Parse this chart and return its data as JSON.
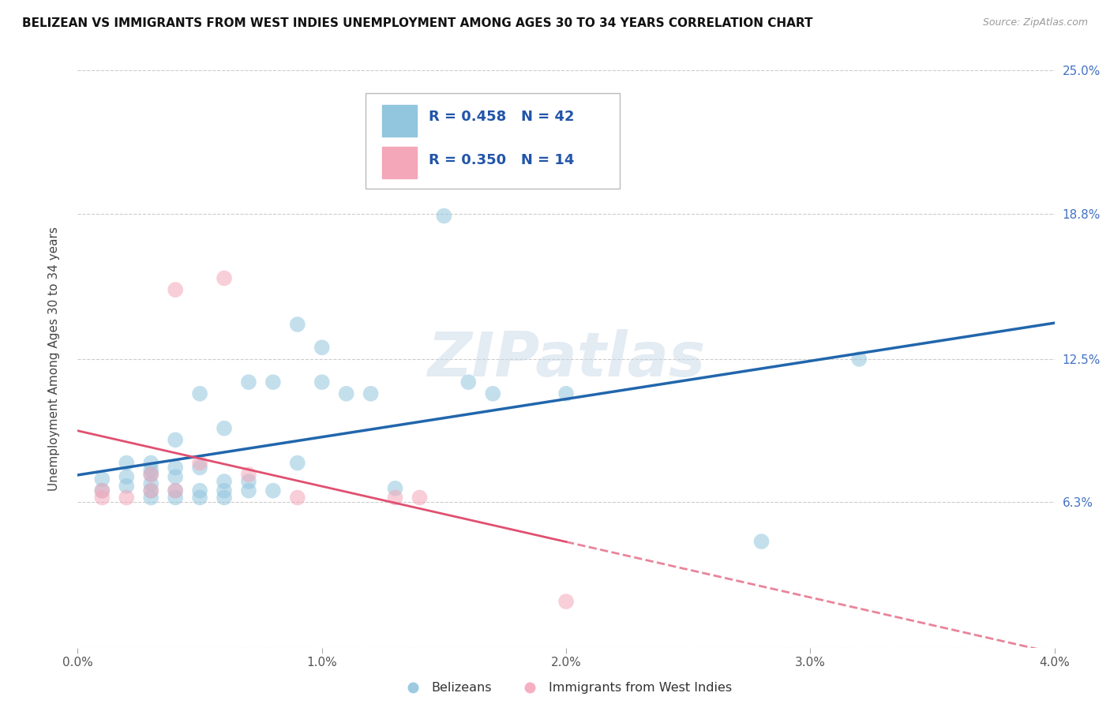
{
  "title": "BELIZEAN VS IMMIGRANTS FROM WEST INDIES UNEMPLOYMENT AMONG AGES 30 TO 34 YEARS CORRELATION CHART",
  "source": "Source: ZipAtlas.com",
  "ylabel": "Unemployment Among Ages 30 to 34 years",
  "xlim": [
    0.0,
    0.04
  ],
  "ylim": [
    0.0,
    0.25
  ],
  "yticks": [
    0.0,
    0.063,
    0.125,
    0.188,
    0.25
  ],
  "ytick_labels": [
    "",
    "6.3%",
    "12.5%",
    "18.8%",
    "25.0%"
  ],
  "xticks": [
    0.0,
    0.01,
    0.02,
    0.03,
    0.04
  ],
  "xtick_labels": [
    "0.0%",
    "1.0%",
    "2.0%",
    "3.0%",
    "4.0%"
  ],
  "blue_color": "#92c5de",
  "pink_color": "#f4a7b9",
  "blue_line_color": "#2166ac",
  "pink_line_color": "#e05070",
  "blue_R": 0.458,
  "blue_N": 42,
  "pink_R": 0.35,
  "pink_N": 14,
  "blue_scatter_x": [
    0.001,
    0.001,
    0.002,
    0.002,
    0.002,
    0.003,
    0.003,
    0.003,
    0.003,
    0.003,
    0.003,
    0.004,
    0.004,
    0.004,
    0.004,
    0.004,
    0.005,
    0.005,
    0.005,
    0.005,
    0.006,
    0.006,
    0.006,
    0.006,
    0.007,
    0.007,
    0.007,
    0.008,
    0.008,
    0.009,
    0.009,
    0.01,
    0.01,
    0.011,
    0.012,
    0.013,
    0.015,
    0.016,
    0.017,
    0.02,
    0.028,
    0.032
  ],
  "blue_scatter_y": [
    0.068,
    0.073,
    0.07,
    0.074,
    0.08,
    0.065,
    0.068,
    0.071,
    0.075,
    0.077,
    0.08,
    0.065,
    0.068,
    0.074,
    0.078,
    0.09,
    0.065,
    0.068,
    0.078,
    0.11,
    0.065,
    0.068,
    0.072,
    0.095,
    0.068,
    0.072,
    0.115,
    0.068,
    0.115,
    0.08,
    0.14,
    0.115,
    0.13,
    0.11,
    0.11,
    0.069,
    0.187,
    0.115,
    0.11,
    0.11,
    0.046,
    0.125
  ],
  "pink_scatter_x": [
    0.001,
    0.001,
    0.002,
    0.003,
    0.003,
    0.004,
    0.004,
    0.005,
    0.006,
    0.007,
    0.009,
    0.013,
    0.014,
    0.02
  ],
  "pink_scatter_y": [
    0.065,
    0.068,
    0.065,
    0.068,
    0.075,
    0.068,
    0.155,
    0.08,
    0.16,
    0.075,
    0.065,
    0.065,
    0.065,
    0.02
  ],
  "watermark": "ZIPatlas",
  "background_color": "#ffffff",
  "grid_color": "#cccccc",
  "right_label_color": "#4472c4",
  "marker_size": 200,
  "marker_alpha": 0.55
}
